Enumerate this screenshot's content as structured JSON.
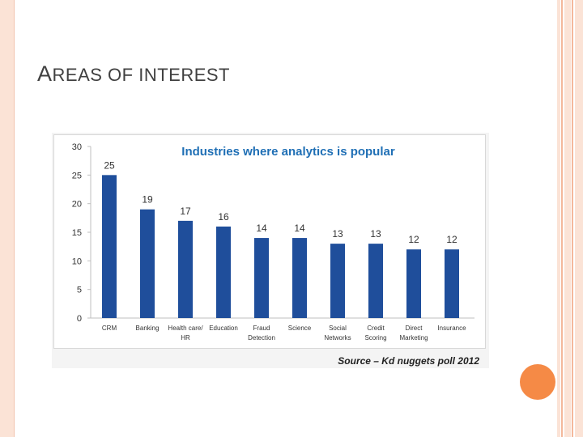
{
  "slide": {
    "title_initial": "A",
    "title_rest": "REAS OF INTEREST"
  },
  "colors": {
    "bar": "#1f4e9b",
    "title_text": "#1f6fb5",
    "accent": "#f58a46",
    "frame": "#fbe3d6"
  },
  "chart_data": {
    "type": "bar",
    "title": "Industries where analytics is popular",
    "categories": [
      [
        "CRM"
      ],
      [
        "Banking"
      ],
      [
        "Health care/",
        "HR"
      ],
      [
        "Education"
      ],
      [
        "Fraud",
        "Detection"
      ],
      [
        "Science"
      ],
      [
        "Social",
        "Networks"
      ],
      [
        "Credit",
        "Scoring"
      ],
      [
        "Direct",
        "Marketing"
      ],
      [
        "Insurance"
      ]
    ],
    "values": [
      25,
      19,
      17,
      16,
      14,
      14,
      13,
      13,
      12,
      12
    ],
    "yticks": [
      0,
      5,
      10,
      15,
      20,
      25,
      30
    ],
    "ylim": [
      0,
      30
    ],
    "xlabel": "",
    "ylabel": "",
    "source": "Source – Kd nuggets poll 2012"
  }
}
